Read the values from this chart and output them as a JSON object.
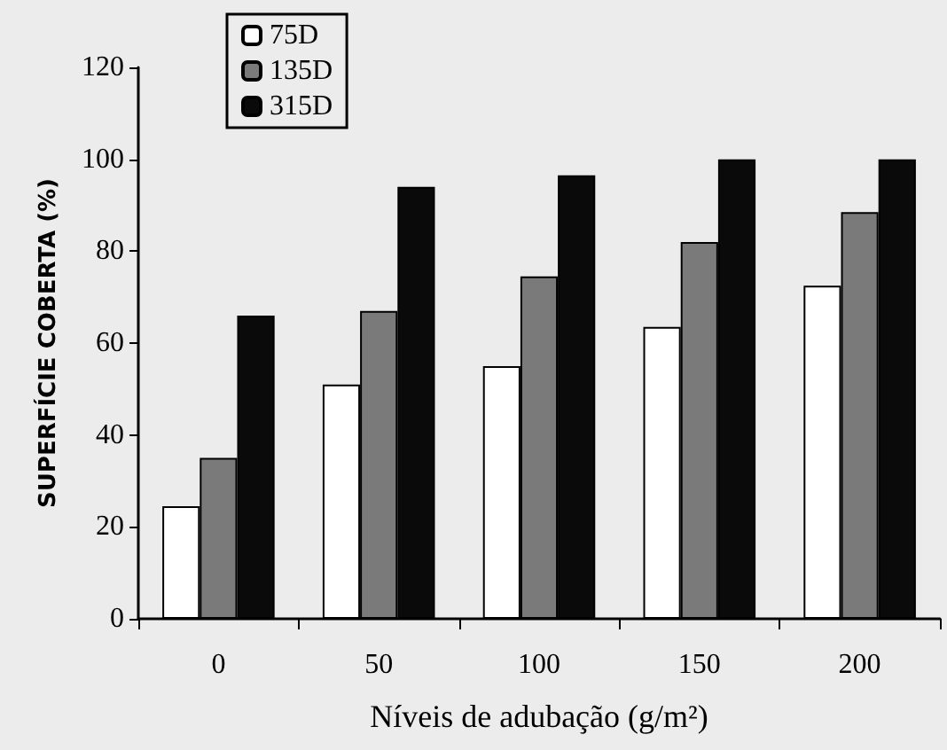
{
  "chart_data": {
    "type": "bar",
    "xlabel": "Níveis de adubação (g/m²)",
    "ylabel": "SUPERFÍCIE COBERTA (%)",
    "categories": [
      "0",
      "50",
      "100",
      "150",
      "200"
    ],
    "series": [
      {
        "name": "75D",
        "color": "#ffffff",
        "values": [
          24.5,
          51,
          55,
          63.5,
          72.5
        ]
      },
      {
        "name": "135D",
        "color": "#7a7a7a",
        "values": [
          35,
          67,
          74.5,
          82,
          88.5
        ]
      },
      {
        "name": "315D",
        "color": "#0a0a0a",
        "values": [
          66,
          94,
          96.5,
          100,
          100
        ]
      }
    ],
    "ylim": [
      0,
      120
    ],
    "yticks": [
      0,
      20,
      40,
      60,
      80,
      100,
      120
    ],
    "grid": false,
    "legend": "top left"
  }
}
